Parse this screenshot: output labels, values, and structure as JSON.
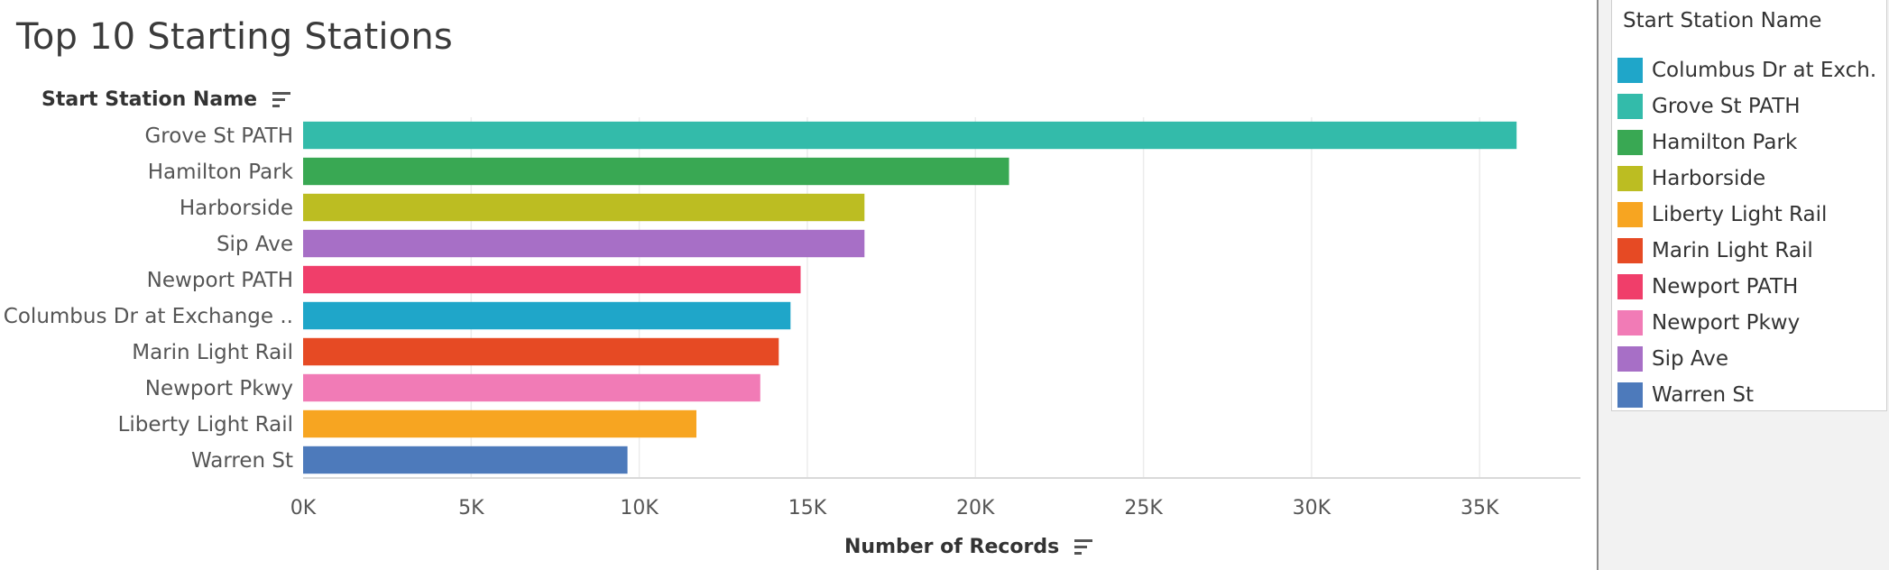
{
  "chart_data": {
    "type": "bar",
    "orientation": "horizontal",
    "title": "Top 10 Starting Stations",
    "row_header": "Start Station Name",
    "xlabel": "Number of Records",
    "categories": [
      "Grove St PATH",
      "Hamilton Park",
      "Harborside",
      "Sip Ave",
      "Newport PATH",
      "Columbus Dr at Exchange ..",
      "Marin Light Rail",
      "Newport Pkwy",
      "Liberty Light Rail",
      "Warren St"
    ],
    "values": [
      36100,
      21000,
      16700,
      16700,
      14800,
      14500,
      14150,
      13600,
      11700,
      9650
    ],
    "colors": [
      "#33bbaa",
      "#39a853",
      "#bcbd22",
      "#a76fc6",
      "#f03e6a",
      "#1fa6c9",
      "#e64a24",
      "#f17bb6",
      "#f7a521",
      "#4d7abb"
    ],
    "xlim": [
      0,
      38000
    ],
    "xticks": [
      0,
      5000,
      10000,
      15000,
      20000,
      25000,
      30000,
      35000
    ],
    "xtick_labels": [
      "0K",
      "5K",
      "10K",
      "15K",
      "20K",
      "25K",
      "30K",
      "35K"
    ],
    "grid": true,
    "legend": {
      "title": "Start Station Name",
      "placement": "right",
      "items": [
        {
          "label": "Columbus Dr at Exch..",
          "color": "#1fa6c9"
        },
        {
          "label": "Grove St PATH",
          "color": "#33bbaa"
        },
        {
          "label": "Hamilton Park",
          "color": "#39a853"
        },
        {
          "label": "Harborside",
          "color": "#bcbd22"
        },
        {
          "label": "Liberty Light Rail",
          "color": "#f7a521"
        },
        {
          "label": "Marin Light Rail",
          "color": "#e64a24"
        },
        {
          "label": "Newport PATH",
          "color": "#f03e6a"
        },
        {
          "label": "Newport Pkwy",
          "color": "#f17bb6"
        },
        {
          "label": "Sip Ave",
          "color": "#a76fc6"
        },
        {
          "label": "Warren St",
          "color": "#4d7abb"
        }
      ]
    }
  }
}
